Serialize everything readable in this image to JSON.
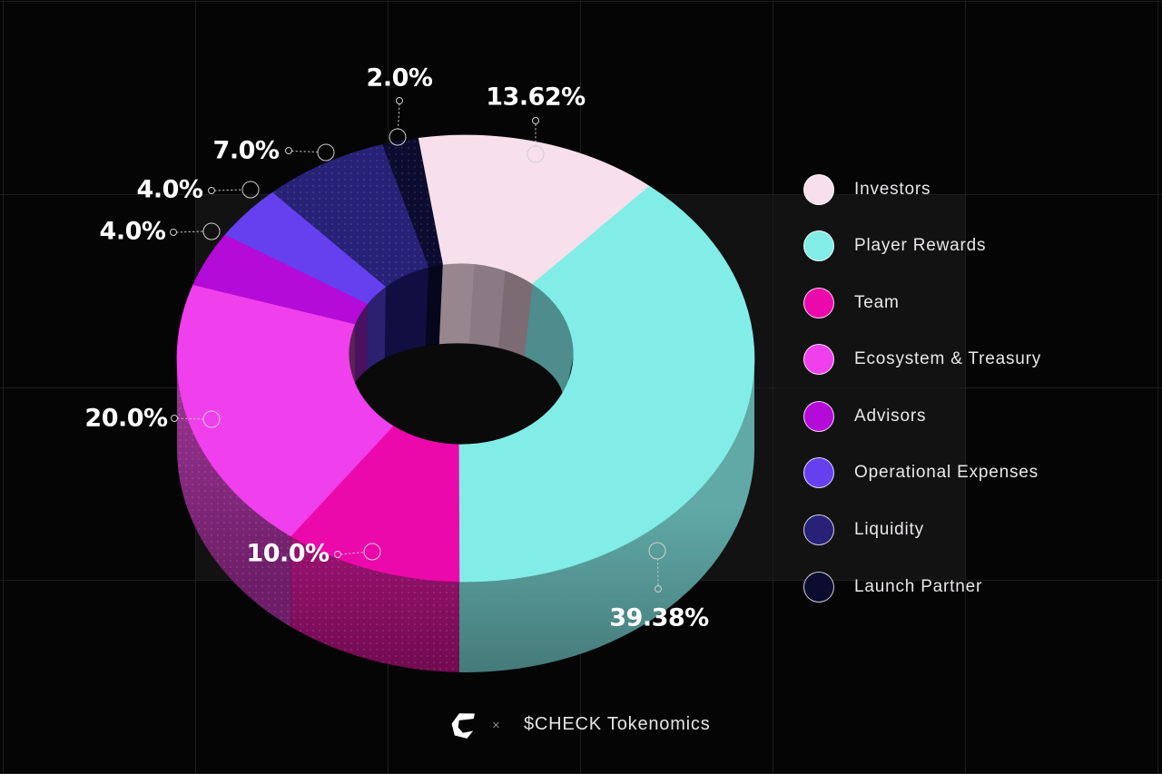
{
  "chart_data": {
    "type": "pie",
    "style": "3d-donut",
    "title": "$CHECK Tokenomics",
    "legend_position": "right",
    "background": "#050505",
    "start_angle_deg": -9.5,
    "slices": [
      {
        "name": "Investors",
        "value": 13.62,
        "label": "13.62%",
        "color": "#F7E0EB",
        "side": "#B9A3AE",
        "wall": "#8A7881",
        "wall_bands": [
          "#97868E",
          "#8B7A83",
          "#7D6B74"
        ]
      },
      {
        "name": "Player Rewards",
        "value": 39.38,
        "label": "39.38%",
        "color": "#82EDE6",
        "side": "#4F9495",
        "wall": "#4E8C8D"
      },
      {
        "name": "Team",
        "value": 10.0,
        "label": "10.0%",
        "color": "#EC09AB",
        "side": "#8A1166",
        "wall": "#6E0C52"
      },
      {
        "name": "Ecosystem & Treasury",
        "value": 20.0,
        "label": "20.0%",
        "color": "#F03FEC",
        "side": "#8E2C88",
        "wall": "#5A2355"
      },
      {
        "name": "Advisors",
        "value": 4.0,
        "label": "4.0%",
        "color": "#B40BD8",
        "side": "#7A0D98",
        "wall": "#49115F"
      },
      {
        "name": "Operational Expenses",
        "value": 4.0,
        "label": "4.0%",
        "color": "#6540EF",
        "side": "#4A22A0",
        "wall": "#2C2070"
      },
      {
        "name": "Liquidity",
        "value": 7.0,
        "label": "7.0%",
        "color": "#272178",
        "side": "#18144E",
        "wall": "#110E42"
      },
      {
        "name": "Launch Partner",
        "value": 2.0,
        "label": "2.0%",
        "color": "#0C0C30",
        "side": "#07071E",
        "wall": "#06061C"
      }
    ]
  },
  "footer": {
    "separator": "×",
    "title": "$CHECK Tokenomics"
  }
}
